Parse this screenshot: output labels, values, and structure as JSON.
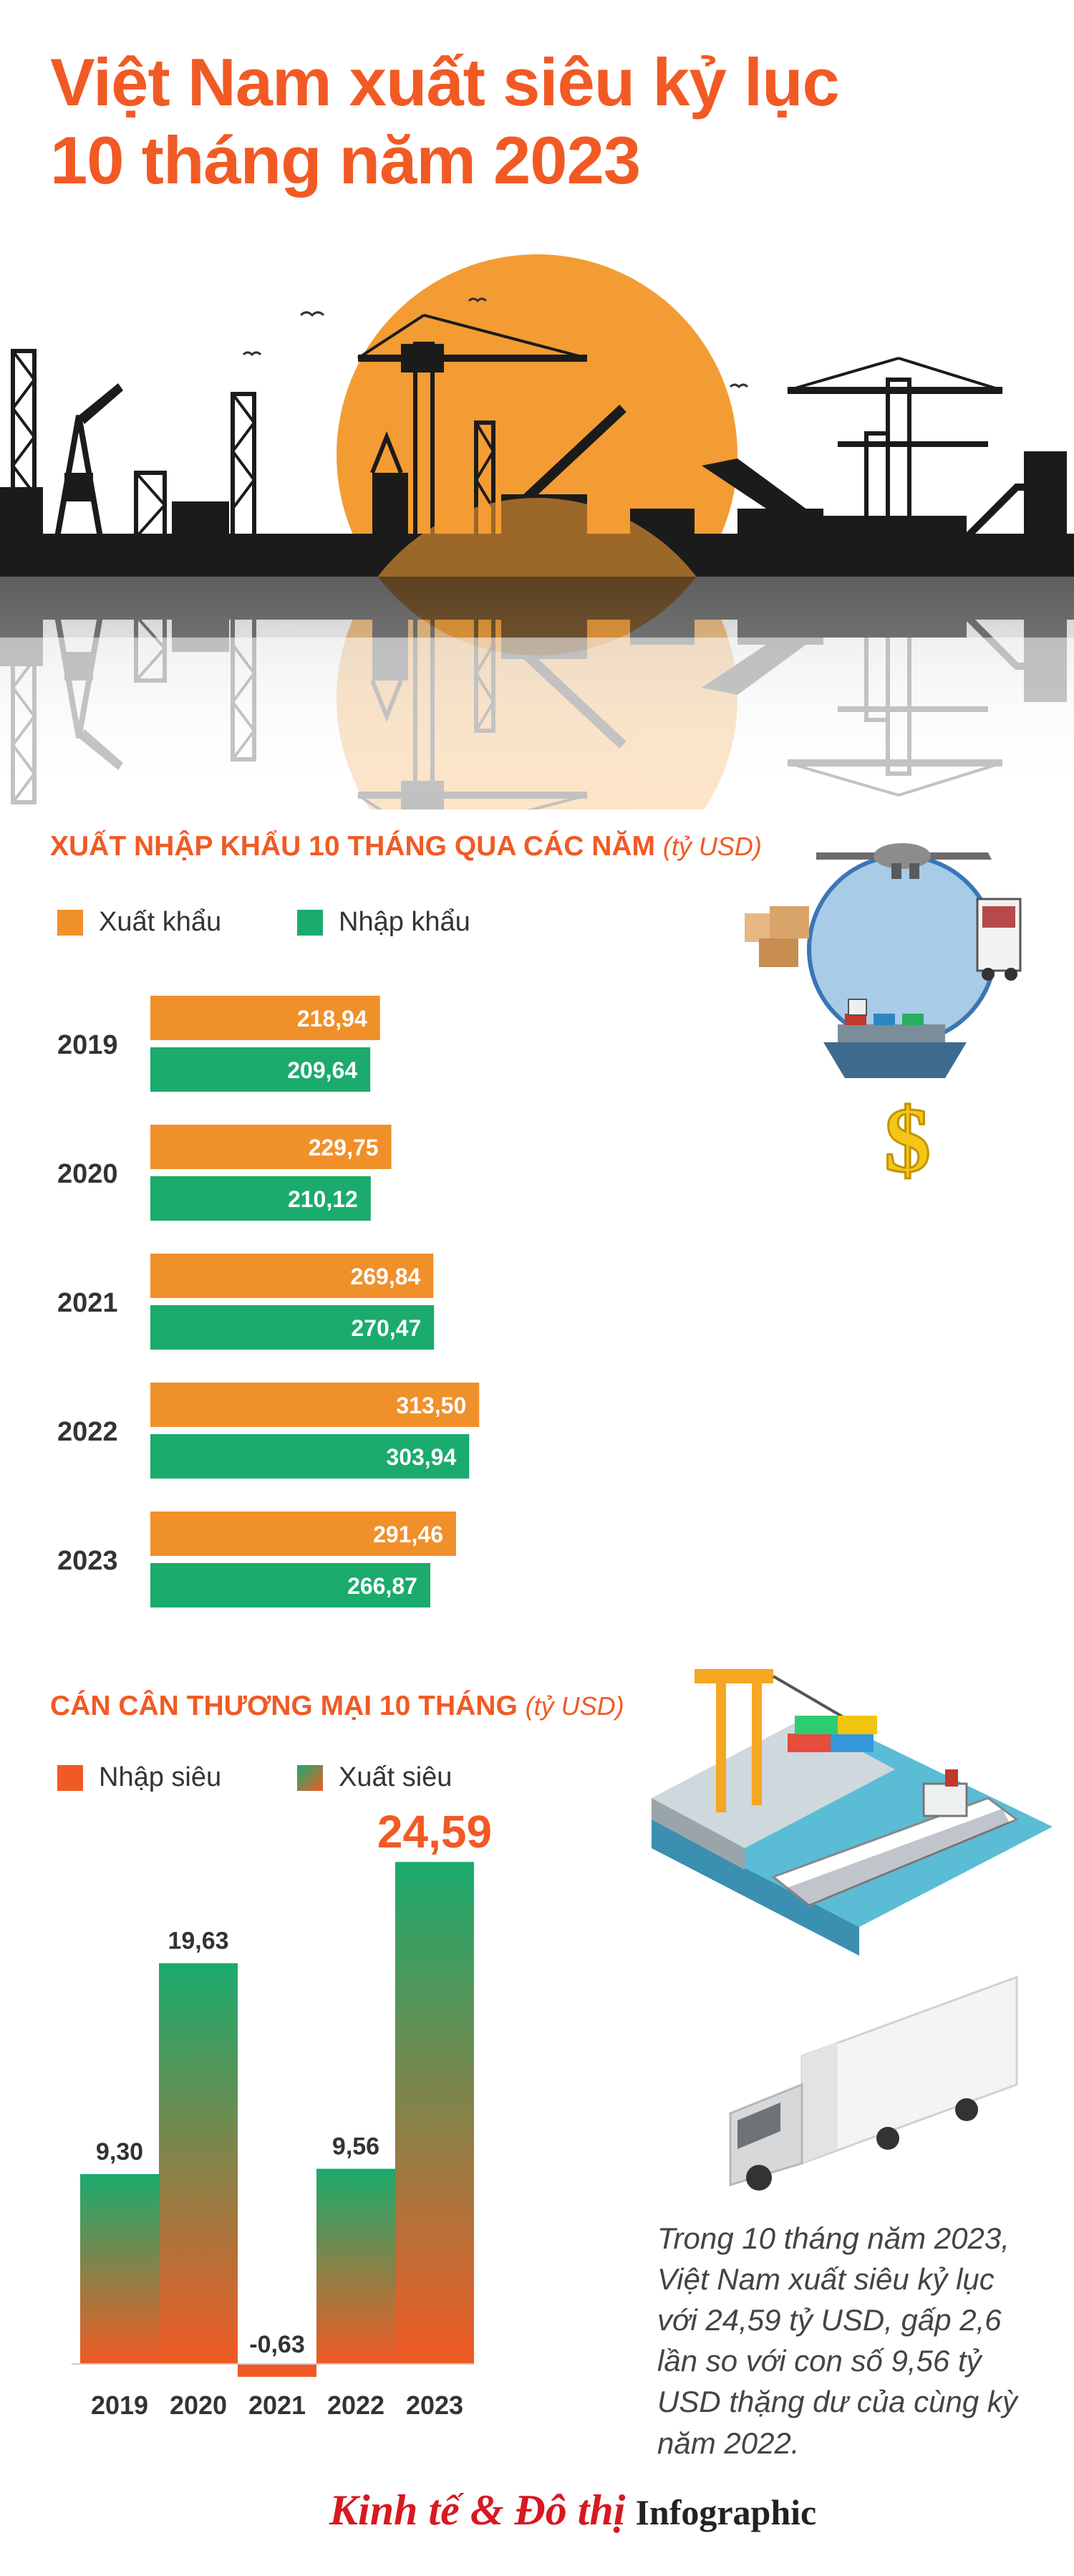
{
  "title": {
    "line1": "Việt Nam xuất siêu kỷ lục",
    "line2": "10 tháng năm 2023"
  },
  "colors": {
    "orange": "#f0902a",
    "green": "#1aab6d",
    "accent": "#f15a24"
  },
  "chart_data": [
    {
      "type": "bar",
      "orientation": "horizontal",
      "title": "XUẤT NHẬP KHẨU 10 THÁNG QUA CÁC NĂM",
      "unit": "(tỷ USD)",
      "categories": [
        "2019",
        "2020",
        "2021",
        "2022",
        "2023"
      ],
      "series": [
        {
          "name": "Xuất khẩu",
          "color": "#f0902a",
          "values": [
            218.94,
            229.75,
            269.84,
            313.5,
            291.46
          ],
          "labels": [
            "218,94",
            "229,75",
            "269,84",
            "313,50",
            "291,46"
          ]
        },
        {
          "name": "Nhập khẩu",
          "color": "#1aab6d",
          "values": [
            209.64,
            210.12,
            270.47,
            303.94,
            266.87
          ],
          "labels": [
            "209,64",
            "210,12",
            "270,47",
            "303,94",
            "266,87"
          ]
        }
      ]
    },
    {
      "type": "bar",
      "title": "CÁN CÂN THƯƠNG MẠI 10 THÁNG",
      "unit": "(tỷ USD)",
      "legend": [
        "Nhập siêu",
        "Xuất siêu"
      ],
      "categories": [
        "2019",
        "2020",
        "2021",
        "2022",
        "2023"
      ],
      "values": [
        9.3,
        19.63,
        -0.63,
        9.56,
        24.59
      ],
      "labels": [
        "9,30",
        "19,63",
        "-0,63",
        "9,56",
        "24,59"
      ]
    }
  ],
  "note": "Trong 10 tháng năm 2023, Việt Nam xuất siêu kỷ lục với 24,59 tỷ USD, gấp 2,6 lần so với con số 9,56 tỷ USD thặng dư của cùng kỳ năm 2022.",
  "logo": {
    "brand": "Kinh tế & Đô thị",
    "suffix": "Infographic"
  }
}
